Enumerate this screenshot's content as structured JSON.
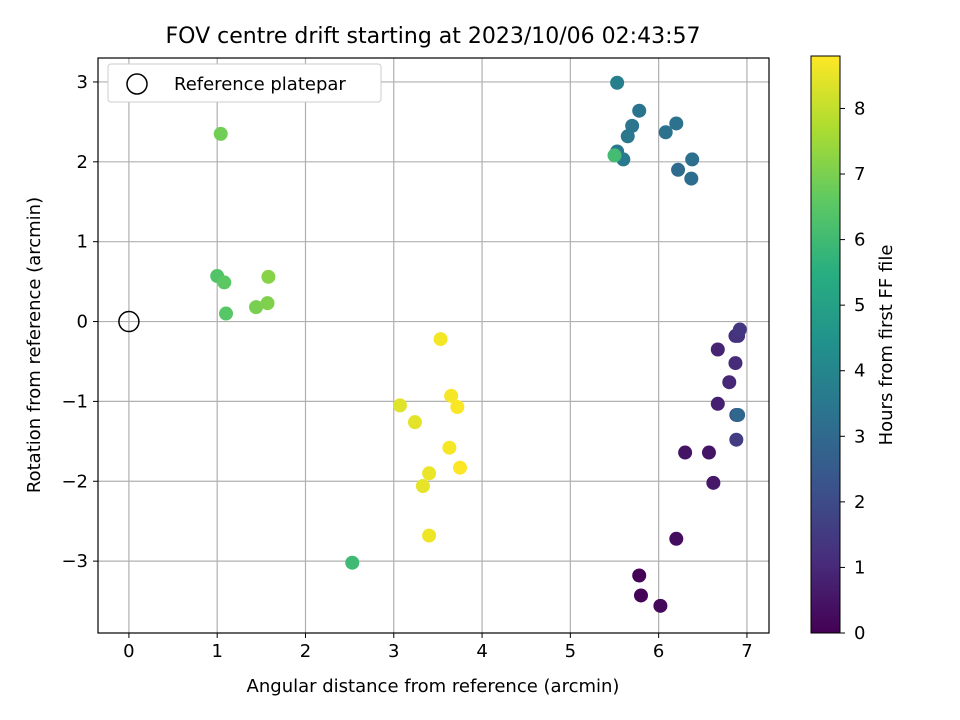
{
  "chart_data": {
    "type": "scatter",
    "title": "FOV centre drift starting at 2023/10/06 02:43:57",
    "xlabel": "Angular distance from reference (arcmin)",
    "ylabel": "Rotation from reference (arcmin)",
    "xlim": [
      -0.35,
      7.25
    ],
    "ylim": [
      -3.9,
      3.3
    ],
    "xticks": [
      0,
      1,
      2,
      3,
      4,
      5,
      6,
      7
    ],
    "yticks": [
      -3,
      -2,
      -1,
      0,
      1,
      2,
      3
    ],
    "grid": true,
    "legend": {
      "placement": "top-left",
      "entries": [
        "Reference platepar"
      ]
    },
    "reference": {
      "name": "Reference platepar",
      "x": 0,
      "y": 0
    },
    "colorbar": {
      "label": "Hours from first FF file",
      "range": [
        0,
        8.8
      ],
      "ticks": [
        0,
        1,
        2,
        3,
        4,
        5,
        6,
        7,
        8
      ],
      "colormap": "viridis"
    },
    "points": [
      {
        "x": 5.78,
        "y": -3.18,
        "c": 0.05
      },
      {
        "x": 5.8,
        "y": -3.43,
        "c": 0.1
      },
      {
        "x": 6.02,
        "y": -3.56,
        "c": 0.2
      },
      {
        "x": 6.2,
        "y": -2.72,
        "c": 0.3
      },
      {
        "x": 6.3,
        "y": -1.64,
        "c": 0.45
      },
      {
        "x": 6.57,
        "y": -1.64,
        "c": 0.5
      },
      {
        "x": 6.62,
        "y": -2.02,
        "c": 0.6
      },
      {
        "x": 6.67,
        "y": -1.03,
        "c": 0.8
      },
      {
        "x": 6.67,
        "y": -0.35,
        "c": 0.9
      },
      {
        "x": 6.8,
        "y": -0.76,
        "c": 1.0
      },
      {
        "x": 6.87,
        "y": -0.52,
        "c": 1.1
      },
      {
        "x": 6.87,
        "y": -0.18,
        "c": 1.2
      },
      {
        "x": 6.9,
        "y": -0.18,
        "c": 1.3
      },
      {
        "x": 6.92,
        "y": -0.1,
        "c": 1.4
      },
      {
        "x": 6.88,
        "y": -1.48,
        "c": 1.6
      },
      {
        "x": 6.88,
        "y": -1.17,
        "c": 2.0
      },
      {
        "x": 6.89,
        "y": -1.17,
        "c": 2.5
      },
      {
        "x": 6.9,
        "y": -1.17,
        "c": 3.0
      },
      {
        "x": 6.22,
        "y": 1.9,
        "c": 3.1
      },
      {
        "x": 6.37,
        "y": 1.79,
        "c": 3.2
      },
      {
        "x": 6.38,
        "y": 2.03,
        "c": 3.25
      },
      {
        "x": 6.08,
        "y": 2.37,
        "c": 3.3
      },
      {
        "x": 6.2,
        "y": 2.48,
        "c": 3.35
      },
      {
        "x": 5.78,
        "y": 2.64,
        "c": 3.4
      },
      {
        "x": 5.7,
        "y": 2.45,
        "c": 3.45
      },
      {
        "x": 5.65,
        "y": 2.32,
        "c": 3.5
      },
      {
        "x": 5.53,
        "y": 2.13,
        "c": 3.55
      },
      {
        "x": 5.6,
        "y": 2.03,
        "c": 3.6
      },
      {
        "x": 5.53,
        "y": 2.99,
        "c": 3.8
      },
      {
        "x": 5.5,
        "y": 2.08,
        "c": 6.1
      },
      {
        "x": 2.53,
        "y": -3.02,
        "c": 6.0
      },
      {
        "x": 1.0,
        "y": 0.57,
        "c": 6.4
      },
      {
        "x": 1.1,
        "y": 0.1,
        "c": 6.5
      },
      {
        "x": 1.08,
        "y": 0.49,
        "c": 6.6
      },
      {
        "x": 1.04,
        "y": 2.35,
        "c": 6.9
      },
      {
        "x": 1.44,
        "y": 0.18,
        "c": 7.0
      },
      {
        "x": 1.57,
        "y": 0.23,
        "c": 7.1
      },
      {
        "x": 1.58,
        "y": 0.56,
        "c": 7.2
      },
      {
        "x": 3.07,
        "y": -1.05,
        "c": 8.4
      },
      {
        "x": 3.24,
        "y": -1.26,
        "c": 8.45
      },
      {
        "x": 3.33,
        "y": -2.06,
        "c": 8.5
      },
      {
        "x": 3.4,
        "y": -1.9,
        "c": 8.55
      },
      {
        "x": 3.4,
        "y": -2.68,
        "c": 8.6
      },
      {
        "x": 3.53,
        "y": -0.22,
        "c": 8.65
      },
      {
        "x": 3.63,
        "y": -1.58,
        "c": 8.7
      },
      {
        "x": 3.65,
        "y": -0.93,
        "c": 8.7
      },
      {
        "x": 3.72,
        "y": -1.07,
        "c": 8.75
      },
      {
        "x": 3.75,
        "y": -1.83,
        "c": 8.8
      }
    ]
  }
}
